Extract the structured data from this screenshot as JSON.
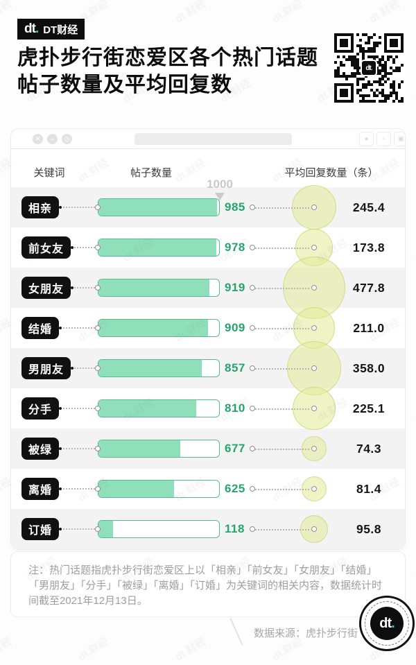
{
  "header": {
    "logo_mark": "dt",
    "logo_dot": ".",
    "logo_name": "DT财经",
    "title_line1": "虎扑步行街恋爱区各个热门话题",
    "title_line2": "帖子数量及平均回复数"
  },
  "window_chrome": {
    "close_icon": "✕",
    "minimize_icon": "−",
    "history_icon": "◷"
  },
  "chart_data": {
    "type": "bar",
    "title": "虎扑步行街恋爱区各个热门话题帖子数量及平均回复数",
    "columns": {
      "keyword": "关键词",
      "posts": "帖子数量",
      "avg_replies": "平均回复数量（条）"
    },
    "axis_max_label": "1000",
    "xlim": [
      0,
      1000
    ],
    "categories": [
      "相亲",
      "前女友",
      "女朋友",
      "结婚",
      "男朋友",
      "分手",
      "被绿",
      "离婚",
      "订婚"
    ],
    "series": [
      {
        "name": "帖子数量",
        "values": [
          985,
          978,
          919,
          909,
          857,
          810,
          677,
          625,
          118
        ]
      },
      {
        "name": "平均回复数量（条）",
        "values": [
          245.4,
          173.8,
          477.8,
          211.0,
          358.0,
          225.1,
          74.3,
          81.4,
          95.8
        ]
      }
    ],
    "rows": [
      {
        "keyword": "相亲",
        "posts": 985,
        "avg_replies": 245.4,
        "avg_display": "245.4"
      },
      {
        "keyword": "前女友",
        "posts": 978,
        "avg_replies": 173.8,
        "avg_display": "173.8"
      },
      {
        "keyword": "女朋友",
        "posts": 919,
        "avg_replies": 477.8,
        "avg_display": "477.8"
      },
      {
        "keyword": "结婚",
        "posts": 909,
        "avg_replies": 211.0,
        "avg_display": "211.0"
      },
      {
        "keyword": "男朋友",
        "posts": 857,
        "avg_replies": 358.0,
        "avg_display": "358.0"
      },
      {
        "keyword": "分手",
        "posts": 810,
        "avg_replies": 225.1,
        "avg_display": "225.1"
      },
      {
        "keyword": "被绿",
        "posts": 677,
        "avg_replies": 74.3,
        "avg_display": "74.3"
      },
      {
        "keyword": "离婚",
        "posts": 625,
        "avg_replies": 81.4,
        "avg_display": "81.4"
      },
      {
        "keyword": "订婚",
        "posts": 118,
        "avg_replies": 95.8,
        "avg_display": "95.8"
      }
    ],
    "bubble_radius_scale": 2.05,
    "colors": {
      "bar_fill": "#8fe0ba",
      "bar_border": "#56bb91",
      "value_green": "#27a36e",
      "bubble_fill": "#e2ea96",
      "label_badge_bg": "#101010",
      "accent_teal": "#3ec6c0"
    },
    "legend": "off",
    "grid": "off"
  },
  "note": "注：热门话题指虎扑步行街恋爱区上以「相亲」「前女友」「女朋友」「结婚」「男朋友」「分手」「被绿」「离婚」「订婚」为关键词的相关内容，数据统计时间截至2021年12月13日。",
  "footer": {
    "source": "数据来源：虎扑步行街",
    "logo_mark": "dt",
    "logo_dot": "."
  },
  "watermark_text": "dt.财经"
}
